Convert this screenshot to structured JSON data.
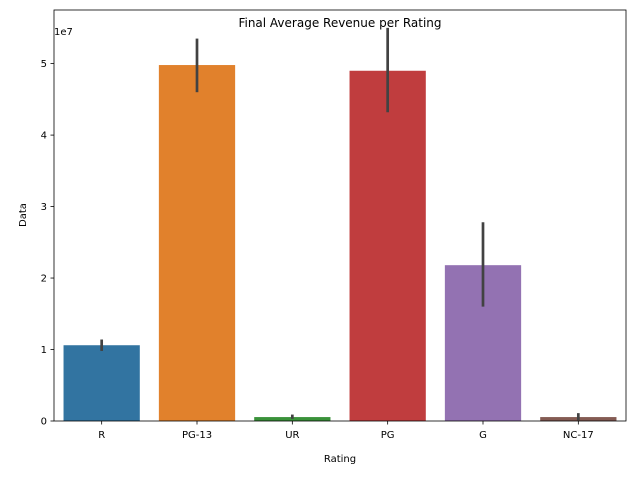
{
  "chart_data": {
    "type": "bar",
    "title": "Final Average Revenue per Rating",
    "xlabel": "Rating",
    "ylabel": "Data",
    "y_offset_label": "1e7",
    "categories": [
      "R",
      "PG-13",
      "UR",
      "PG",
      "G",
      "NC-17"
    ],
    "values": [
      10600000,
      49800000,
      550000,
      49000000,
      21800000,
      550000
    ],
    "error_low": [
      9800000,
      46000000,
      300000,
      43200000,
      16000000,
      100000
    ],
    "error_high": [
      11400000,
      53500000,
      900000,
      55000000,
      27800000,
      1100000
    ],
    "colors": [
      "#3274a1",
      "#e1812c",
      "#3a923a",
      "#c03d3e",
      "#9372b2",
      "#845b53"
    ],
    "ylim": [
      0,
      57500000
    ],
    "yticks": [
      0,
      10000000,
      20000000,
      30000000,
      40000000,
      50000000
    ],
    "ytick_labels": [
      "0",
      "1",
      "2",
      "3",
      "4",
      "5"
    ],
    "grid": false,
    "legend": "none"
  }
}
